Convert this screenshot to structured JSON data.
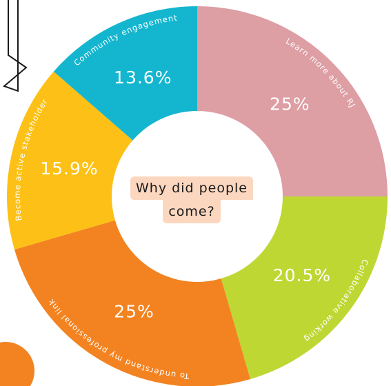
{
  "chart_data": {
    "type": "pie",
    "center_text": [
      "Why did people",
      "come?"
    ],
    "slices": [
      {
        "label": "Learn more about RJ",
        "value": 25,
        "value_label": "25%",
        "color": "#dd9ea4"
      },
      {
        "label": "Collaborative working",
        "value": 20.5,
        "value_label": "20.5%",
        "color": "#bfd733"
      },
      {
        "label": "To understand my professional link",
        "value": 25,
        "value_label": "25%",
        "color": "#f38320"
      },
      {
        "label": "Become active stakeholder",
        "value": 15.9,
        "value_label": "15.9%",
        "color": "#fdc016"
      },
      {
        "label": "Community engagement",
        "value": 13.6,
        "value_label": "13.6%",
        "color": "#14b6cf"
      }
    ]
  }
}
